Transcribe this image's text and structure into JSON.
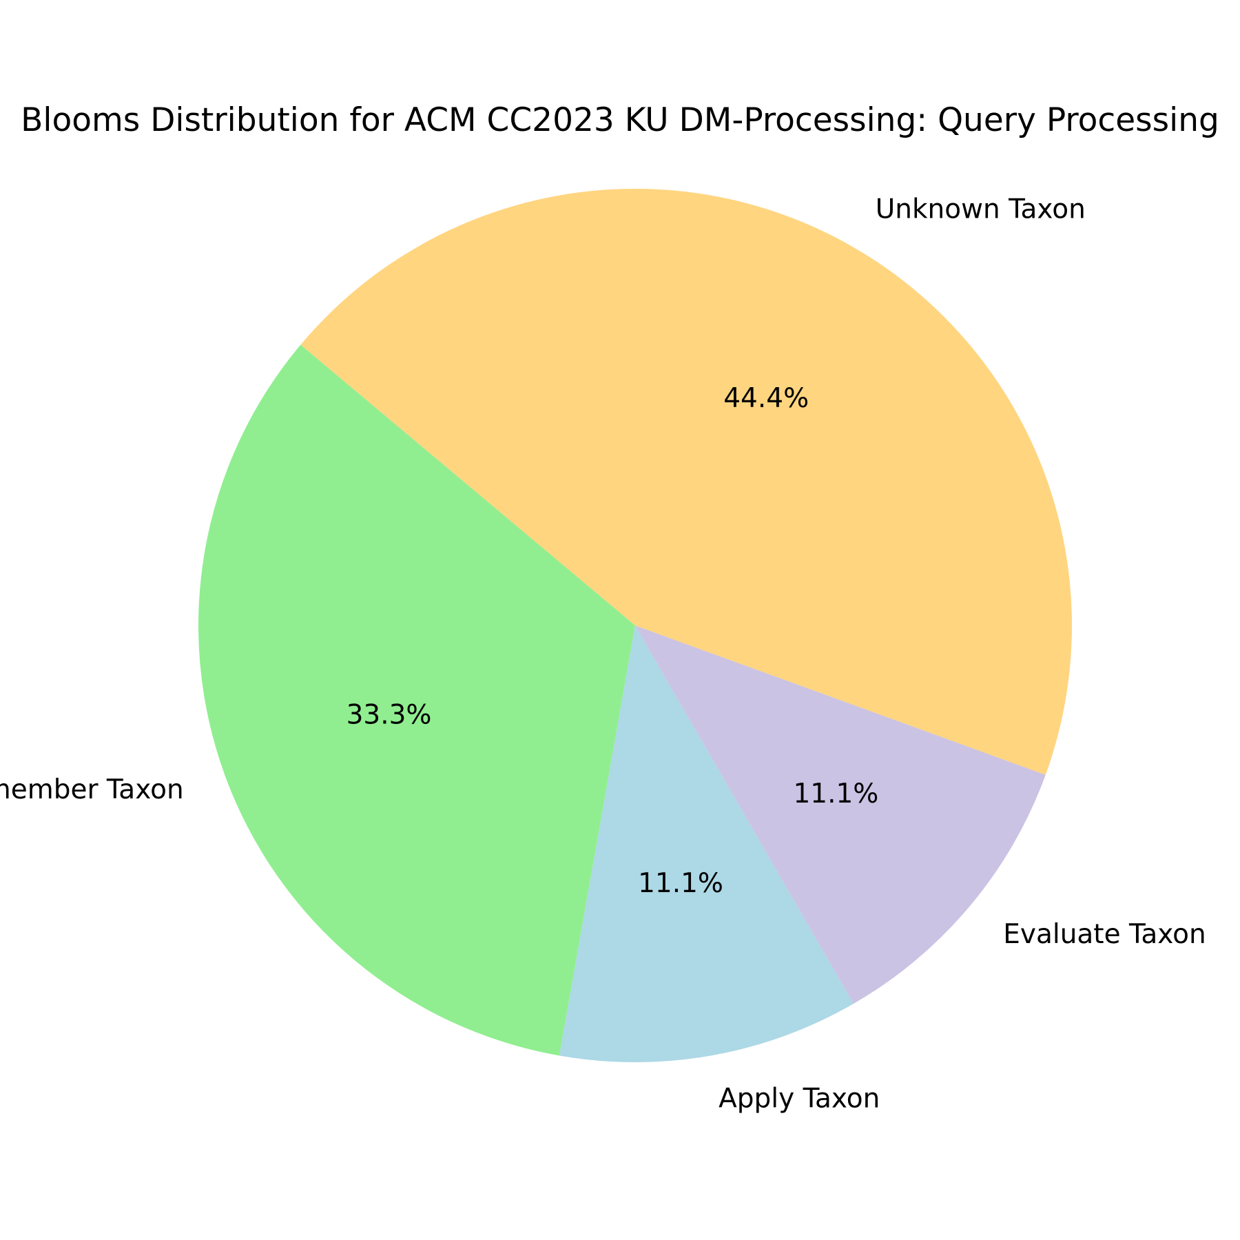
{
  "chart_data": {
    "type": "pie",
    "title": "Blooms Distribution for ACM CC2023 KU DM-Processing: Query Processing",
    "slices": [
      {
        "label": "Unknown Taxon",
        "value": 44.4,
        "pct_label": "44.4%",
        "color": "#FFD580"
      },
      {
        "label": "Remember Taxon",
        "value": 33.3,
        "pct_label": "33.3%",
        "color": "#90EE90"
      },
      {
        "label": "Apply Taxon",
        "value": 11.1,
        "pct_label": "11.1%",
        "color": "#ADD8E6"
      },
      {
        "label": "Evaluate Taxon",
        "value": 11.1,
        "pct_label": "11.1%",
        "color": "#CBC3E3"
      }
    ],
    "start_angle_deg": -20,
    "direction": "counterclockwise"
  }
}
